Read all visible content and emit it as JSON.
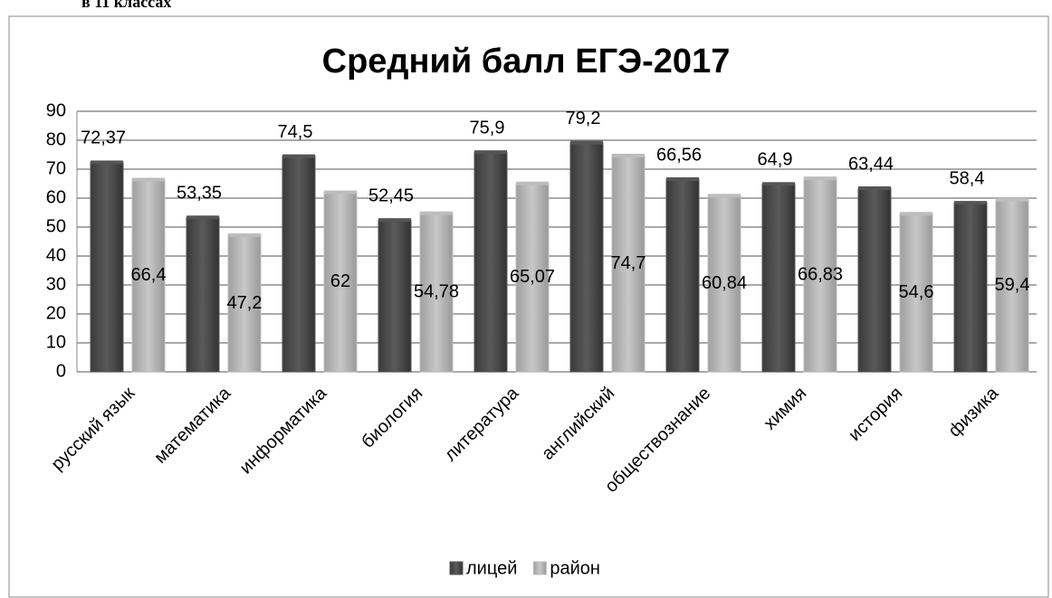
{
  "heading": "в 11 классах",
  "chart_data": {
    "type": "bar",
    "title": "Средний балл ЕГЭ-2017",
    "categories": [
      "русский язык",
      "математика",
      "информатика",
      "биология",
      "литература",
      "английский",
      "обществознание",
      "химия",
      "история",
      "физика"
    ],
    "series": [
      {
        "name": "лицей",
        "color": "#555555",
        "values": [
          72.37,
          53.35,
          74.5,
          52.45,
          75.9,
          79.2,
          66.56,
          64.9,
          63.44,
          58.4
        ],
        "value_labels": [
          "72,37",
          "53,35",
          "74,5",
          "52,45",
          "75,9",
          "79,2",
          "66,56",
          "64,9",
          "63,44",
          "58,4"
        ]
      },
      {
        "name": "район",
        "color": "#bdbdbd",
        "values": [
          66.4,
          47.2,
          62,
          54.78,
          65.07,
          74.7,
          60.84,
          66.83,
          54.6,
          59.4
        ],
        "value_labels": [
          "66,4",
          "47,2",
          "62",
          "54,78",
          "65,07",
          "74,7",
          "60,84",
          "66,83",
          "54,6",
          "59,4"
        ]
      }
    ],
    "ylim": [
      0,
      90
    ],
    "yticks": [
      0,
      10,
      20,
      30,
      40,
      50,
      60,
      70,
      80,
      90
    ],
    "grid": true,
    "legend": "bottom"
  }
}
